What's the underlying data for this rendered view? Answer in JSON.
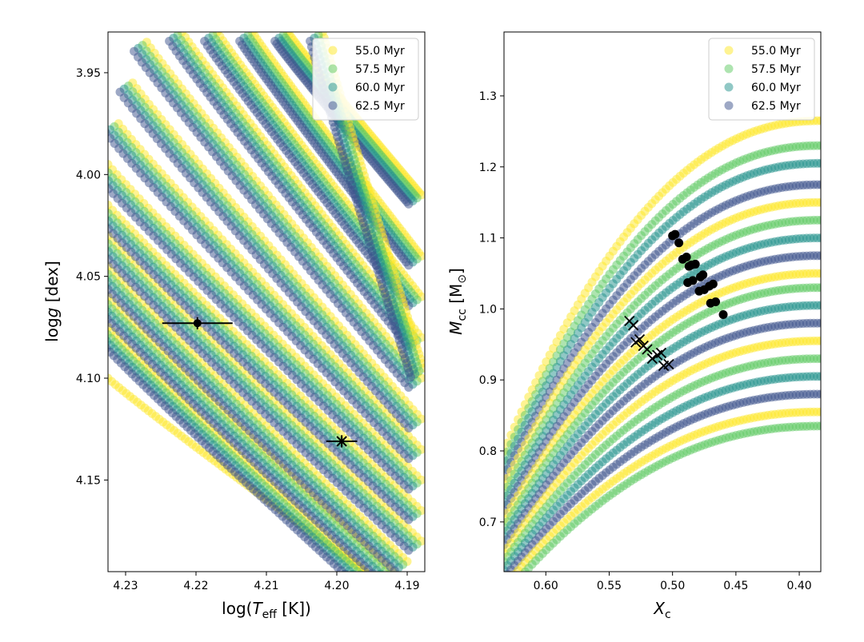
{
  "chart_data": [
    {
      "type": "scatter",
      "panel": "left",
      "xlabel_parts": [
        "log(",
        "T",
        "eff",
        " [K])"
      ],
      "ylabel_parts": [
        "log",
        "g",
        " [dex]"
      ],
      "xlim": [
        4.2325,
        4.1875
      ],
      "ylim": [
        4.195,
        3.93
      ],
      "x_inverted": true,
      "y_inverted": true,
      "xticks": [
        {
          "value": 4.23,
          "label": "4.23"
        },
        {
          "value": 4.22,
          "label": "4.22"
        },
        {
          "value": 4.21,
          "label": "4.21"
        },
        {
          "value": 4.2,
          "label": "4.20"
        },
        {
          "value": 4.19,
          "label": "4.19"
        }
      ],
      "yticks": [
        {
          "value": 3.95,
          "label": "3.95"
        },
        {
          "value": 4.0,
          "label": "4.00"
        },
        {
          "value": 4.05,
          "label": "4.05"
        },
        {
          "value": 4.1,
          "label": "4.10"
        },
        {
          "value": 4.15,
          "label": "4.15"
        }
      ],
      "legend": {
        "position": "top-right",
        "entries": [
          "55.0 Myr",
          "57.5 Myr",
          "60.0 Myr",
          "62.5 Myr"
        ]
      },
      "series_colors": [
        "#fde725",
        "#5ec962",
        "#21918c",
        "#3b528b"
      ],
      "tracks_note": "Model tracks (families of curves for each age) descending toward cooler temperature and higher log g",
      "tracks": [
        {
          "x0": 4.2325,
          "y0": 4.075,
          "x1": 4.196,
          "y1": 4.195,
          "k": 0.9
        },
        {
          "x0": 4.2325,
          "y0": 4.06,
          "x1": 4.192,
          "y1": 4.195,
          "k": 0.9
        },
        {
          "x0": 4.2325,
          "y0": 4.045,
          "x1": 4.19,
          "y1": 4.19,
          "k": 0.9
        },
        {
          "x0": 4.2325,
          "y0": 4.03,
          "x1": 4.188,
          "y1": 4.18,
          "k": 0.9
        },
        {
          "x0": 4.2325,
          "y0": 4.015,
          "x1": 4.188,
          "y1": 4.165,
          "k": 0.9
        },
        {
          "x0": 4.2325,
          "y0": 3.995,
          "x1": 4.188,
          "y1": 4.15,
          "k": 0.9
        },
        {
          "x0": 4.231,
          "y0": 3.975,
          "x1": 4.188,
          "y1": 4.135,
          "k": 0.9
        },
        {
          "x0": 4.229,
          "y0": 3.955,
          "x1": 4.188,
          "y1": 4.12,
          "k": 0.9
        },
        {
          "x0": 4.227,
          "y0": 3.935,
          "x1": 4.188,
          "y1": 4.1,
          "k": 0.9
        },
        {
          "x0": 4.222,
          "y0": 3.93,
          "x1": 4.188,
          "y1": 4.08,
          "k": 0.9
        },
        {
          "x0": 4.217,
          "y0": 3.93,
          "x1": 4.188,
          "y1": 4.06,
          "k": 0.9
        },
        {
          "x0": 4.212,
          "y0": 3.93,
          "x1": 4.188,
          "y1": 4.04,
          "k": 0.9
        },
        {
          "x0": 4.207,
          "y0": 3.93,
          "x1": 4.188,
          "y1": 4.01,
          "k": 0.9
        },
        {
          "x0": 4.202,
          "y0": 3.93,
          "x1": 4.1877,
          "y1": 4.095,
          "k": 0.9
        }
      ],
      "yellow_track": {
        "x0": 4.2325,
        "y0": 4.1,
        "x1": 4.196,
        "y1": 4.195,
        "k": 0.9
      },
      "observations": [
        {
          "name": "circle-star",
          "marker": "o",
          "x": 4.2198,
          "y": 4.073,
          "xerr": 0.005,
          "yerr": 0.003
        },
        {
          "name": "cross-star",
          "marker": "x",
          "x": 4.1993,
          "y": 4.131,
          "xerr": 0.0022,
          "yerr": 0.003
        }
      ]
    },
    {
      "type": "scatter",
      "panel": "right",
      "xlabel_parts": [
        "X",
        "c"
      ],
      "ylabel_parts": [
        "M",
        "cc",
        " [M",
        "⊙",
        "]"
      ],
      "xlim": [
        0.633,
        0.383
      ],
      "ylim": [
        0.63,
        1.39
      ],
      "x_inverted": true,
      "xticks": [
        {
          "value": 0.6,
          "label": "0.60"
        },
        {
          "value": 0.55,
          "label": "0.55"
        },
        {
          "value": 0.5,
          "label": "0.50"
        },
        {
          "value": 0.45,
          "label": "0.45"
        },
        {
          "value": 0.4,
          "label": "0.40"
        }
      ],
      "yticks": [
        {
          "value": 0.7,
          "label": "0.7"
        },
        {
          "value": 0.8,
          "label": "0.8"
        },
        {
          "value": 0.9,
          "label": "0.9"
        },
        {
          "value": 1.0,
          "label": "1.0"
        },
        {
          "value": 1.1,
          "label": "1.1"
        },
        {
          "value": 1.2,
          "label": "1.2"
        },
        {
          "value": 1.3,
          "label": "1.3"
        }
      ],
      "legend": {
        "position": "top-right",
        "entries": [
          "55.0 Myr",
          "57.5 Myr",
          "60.0 Myr",
          "62.5 Myr"
        ]
      },
      "series_colors": [
        "#fde725",
        "#5ec962",
        "#21918c",
        "#3b528b"
      ],
      "tracks_note": "Convective core mass vs central hydrogen fraction; curves rise from high Xc and flatten at low Xc",
      "track_finals": [
        1.265,
        1.23,
        1.205,
        1.175,
        1.15,
        1.125,
        1.1,
        1.075,
        1.05,
        1.03,
        1.005,
        0.98,
        0.955,
        0.93,
        0.905,
        0.88,
        0.855,
        0.835
      ],
      "track_start": 0.8,
      "black_circles": [
        {
          "x": 0.5,
          "y": 1.103
        },
        {
          "x": 0.498,
          "y": 1.105
        },
        {
          "x": 0.495,
          "y": 1.093
        },
        {
          "x": 0.492,
          "y": 1.07
        },
        {
          "x": 0.489,
          "y": 1.073
        },
        {
          "x": 0.487,
          "y": 1.06
        },
        {
          "x": 0.485,
          "y": 1.062
        },
        {
          "x": 0.482,
          "y": 1.063
        },
        {
          "x": 0.488,
          "y": 1.037
        },
        {
          "x": 0.484,
          "y": 1.04
        },
        {
          "x": 0.478,
          "y": 1.045
        },
        {
          "x": 0.476,
          "y": 1.048
        },
        {
          "x": 0.479,
          "y": 1.025
        },
        {
          "x": 0.475,
          "y": 1.027
        },
        {
          "x": 0.471,
          "y": 1.032
        },
        {
          "x": 0.468,
          "y": 1.035
        },
        {
          "x": 0.47,
          "y": 1.008
        },
        {
          "x": 0.466,
          "y": 1.01
        },
        {
          "x": 0.46,
          "y": 0.992
        }
      ],
      "black_crosses": [
        {
          "x": 0.534,
          "y": 0.983
        },
        {
          "x": 0.531,
          "y": 0.977
        },
        {
          "x": 0.529,
          "y": 0.953
        },
        {
          "x": 0.526,
          "y": 0.957
        },
        {
          "x": 0.523,
          "y": 0.948
        },
        {
          "x": 0.52,
          "y": 0.943
        },
        {
          "x": 0.516,
          "y": 0.93
        },
        {
          "x": 0.512,
          "y": 0.935
        },
        {
          "x": 0.509,
          "y": 0.938
        },
        {
          "x": 0.507,
          "y": 0.92
        },
        {
          "x": 0.503,
          "y": 0.922
        }
      ]
    }
  ]
}
